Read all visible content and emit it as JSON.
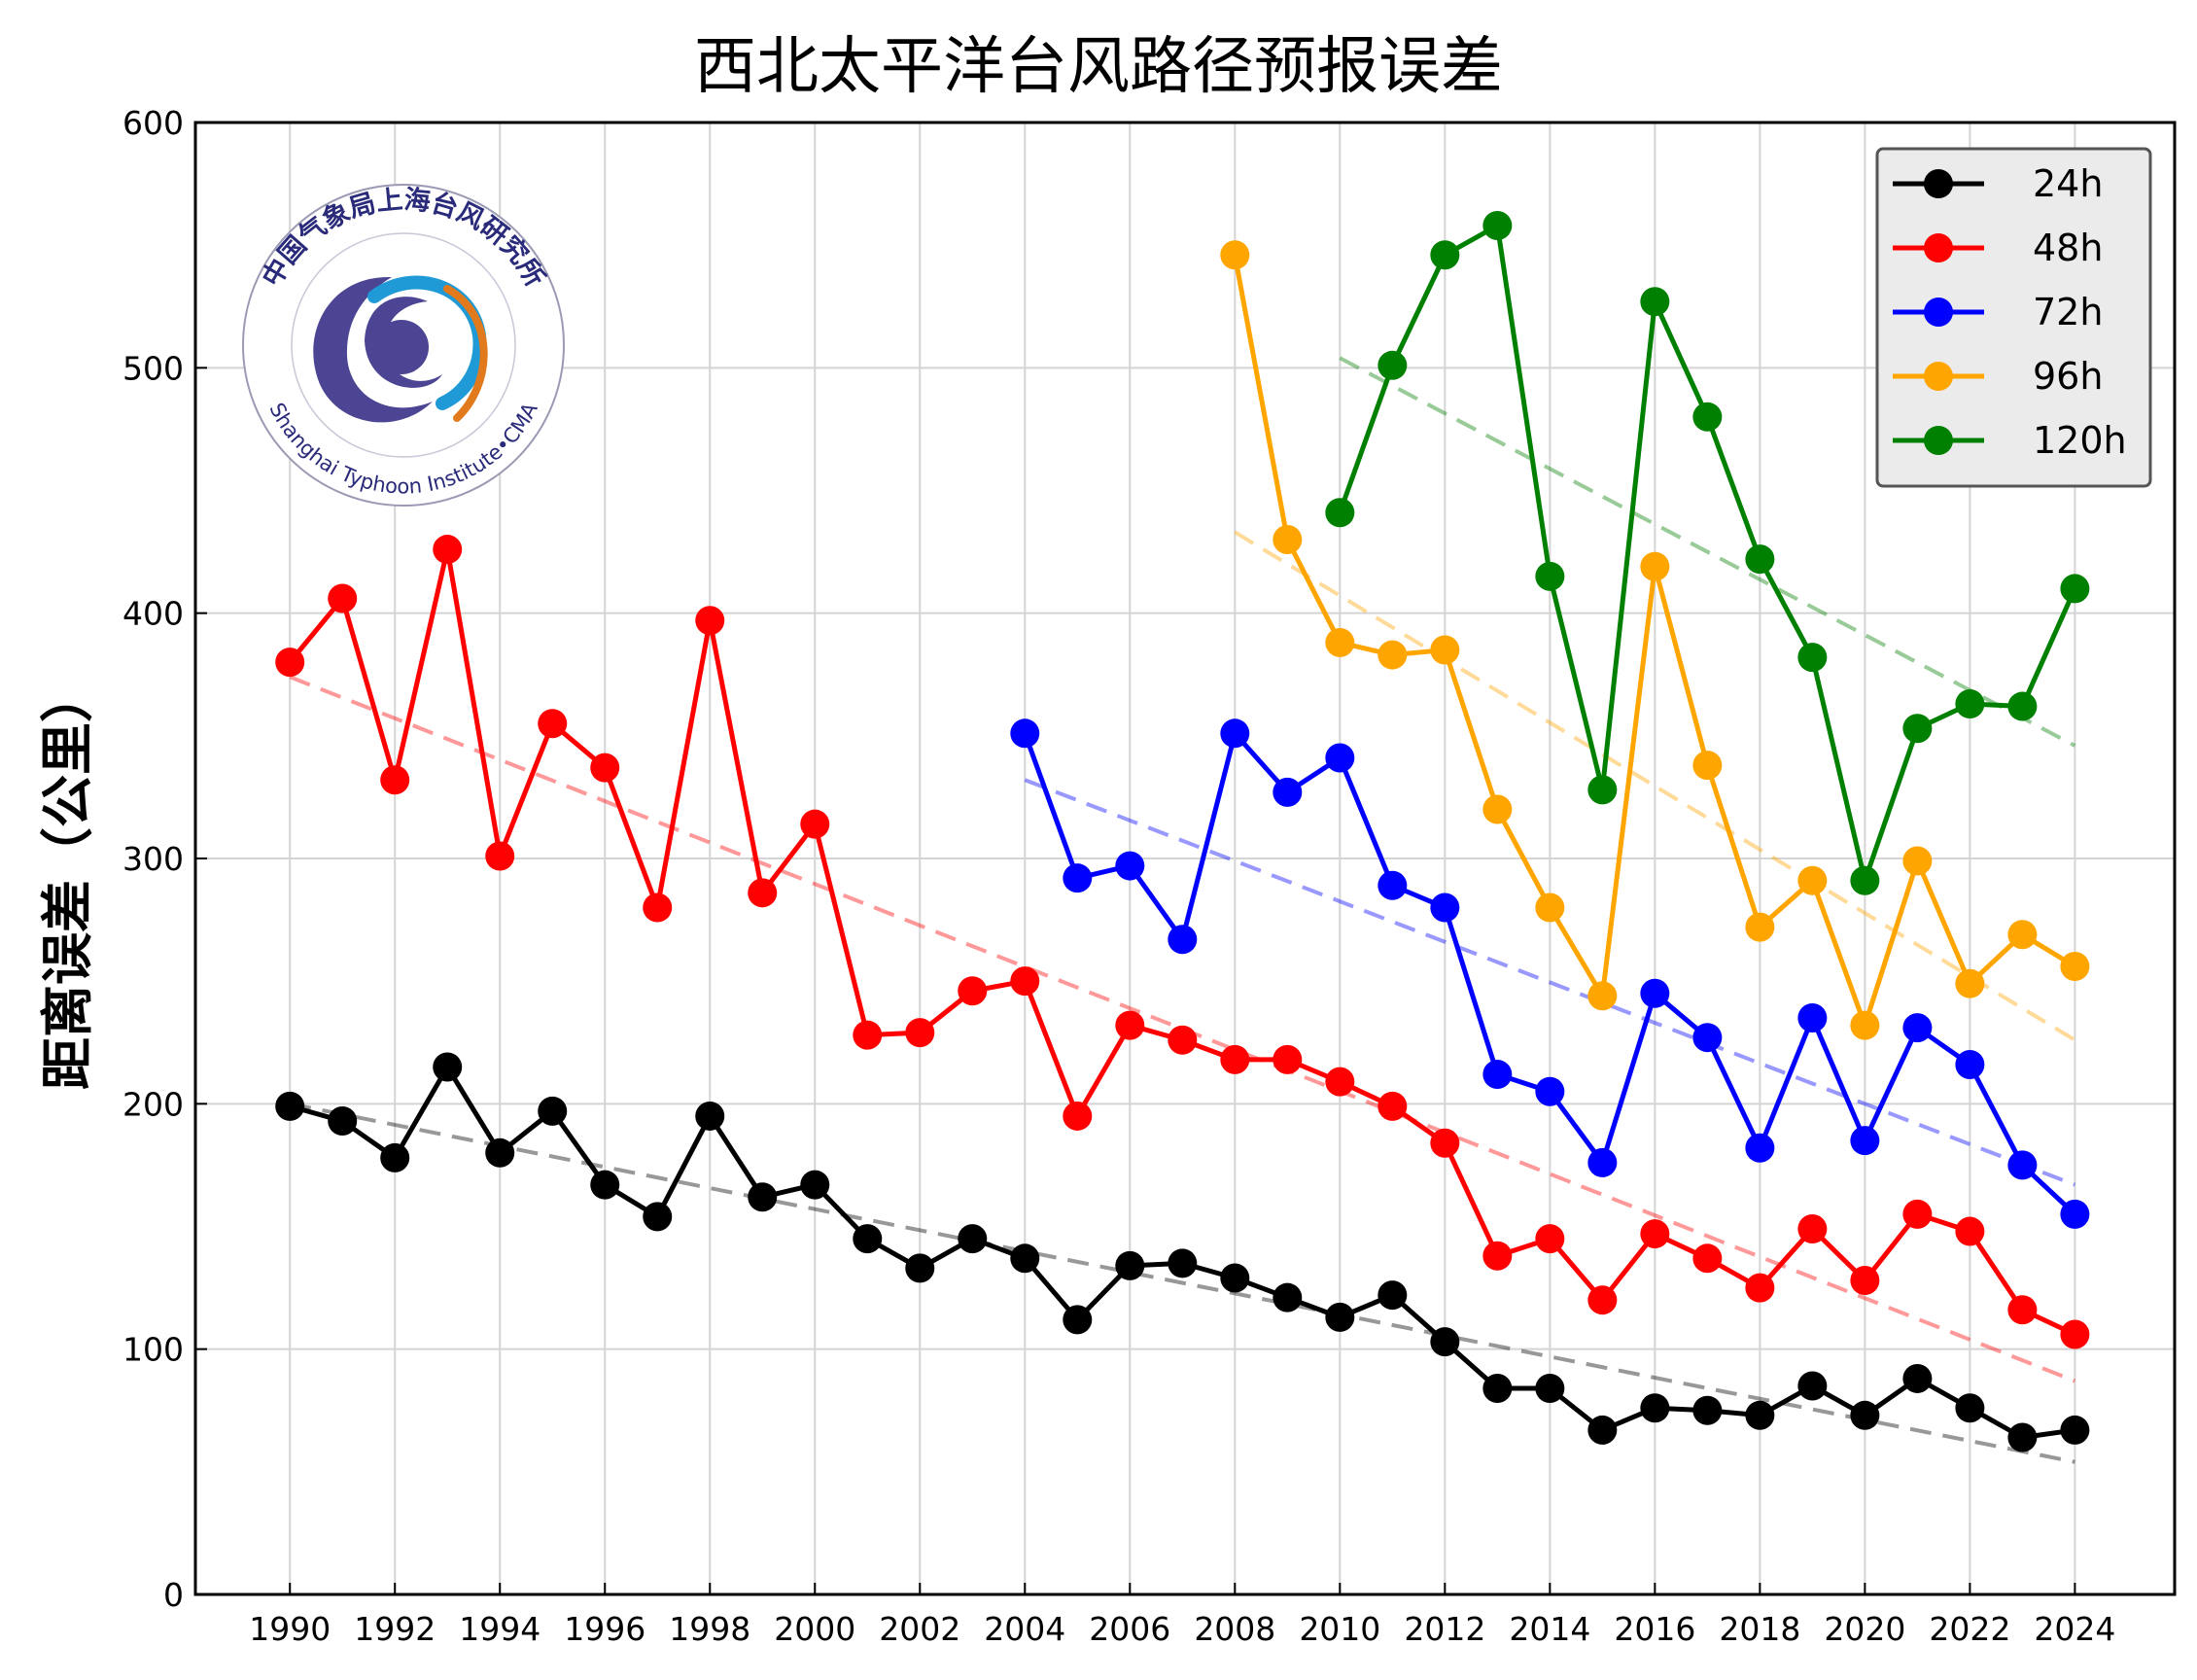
{
  "chart_data": {
    "type": "line",
    "title": "西北太平洋台风路径预报误差",
    "xlabel": "",
    "ylabel": "距离误差（公里）",
    "xlim": [
      1988.2,
      2025.9
    ],
    "ylim": [
      0,
      600
    ],
    "xticks": [
      1990,
      1992,
      1994,
      1996,
      1998,
      2000,
      2002,
      2004,
      2006,
      2008,
      2010,
      2012,
      2014,
      2016,
      2018,
      2020,
      2022,
      2024
    ],
    "yticks": [
      0,
      100,
      200,
      300,
      400,
      500,
      600
    ],
    "grid": true,
    "legend_position": "top-right",
    "trendlines": "dashed linear fit per series",
    "series": [
      {
        "name": "24h",
        "color": "#000000",
        "x": [
          1990,
          1991,
          1992,
          1993,
          1994,
          1995,
          1996,
          1997,
          1998,
          1999,
          2000,
          2001,
          2002,
          2003,
          2004,
          2005,
          2006,
          2007,
          2008,
          2009,
          2010,
          2011,
          2012,
          2013,
          2014,
          2015,
          2016,
          2017,
          2018,
          2019,
          2020,
          2021,
          2022,
          2023,
          2024
        ],
        "values": [
          199,
          193,
          178,
          215,
          180,
          197,
          167,
          154,
          195,
          162,
          167,
          145,
          133,
          145,
          137,
          112,
          134,
          135,
          129,
          121,
          113,
          122,
          103,
          84,
          84,
          67,
          76,
          75,
          73,
          85,
          73,
          88,
          76,
          64,
          67
        ],
        "trend": [
          200,
          54
        ]
      },
      {
        "name": "48h",
        "color": "#ff0000",
        "x": [
          1990,
          1991,
          1992,
          1993,
          1994,
          1995,
          1996,
          1997,
          1998,
          1999,
          2000,
          2001,
          2002,
          2003,
          2004,
          2005,
          2006,
          2007,
          2008,
          2009,
          2010,
          2011,
          2012,
          2013,
          2014,
          2015,
          2016,
          2017,
          2018,
          2019,
          2020,
          2021,
          2022,
          2023,
          2024
        ],
        "values": [
          380,
          406,
          332,
          426,
          301,
          355,
          337,
          280,
          397,
          286,
          314,
          228,
          229,
          246,
          250,
          195,
          232,
          226,
          218,
          218,
          209,
          199,
          184,
          138,
          145,
          120,
          147,
          137,
          125,
          149,
          128,
          155,
          148,
          116,
          106
        ],
        "trend": [
          374,
          87
        ]
      },
      {
        "name": "72h",
        "color": "#0000ff",
        "x": [
          2004,
          2005,
          2006,
          2007,
          2008,
          2009,
          2010,
          2011,
          2012,
          2013,
          2014,
          2015,
          2016,
          2017,
          2018,
          2019,
          2020,
          2021,
          2022,
          2023,
          2024
        ],
        "values": [
          351,
          292,
          297,
          267,
          351,
          327,
          341,
          289,
          280,
          212,
          205,
          176,
          245,
          227,
          182,
          235,
          185,
          231,
          216,
          175,
          155
        ],
        "trend": [
          332,
          167
        ]
      },
      {
        "name": "96h",
        "color": "#ffa500",
        "x": [
          2008,
          2009,
          2010,
          2011,
          2012,
          2013,
          2014,
          2015,
          2016,
          2017,
          2018,
          2019,
          2020,
          2021,
          2022,
          2023,
          2024
        ],
        "values": [
          546,
          430,
          388,
          383,
          385,
          320,
          280,
          244,
          419,
          338,
          272,
          291,
          232,
          299,
          249,
          269,
          256
        ],
        "trend": [
          433,
          226
        ]
      },
      {
        "name": "120h",
        "color": "#008000",
        "x": [
          2010,
          2011,
          2012,
          2013,
          2014,
          2015,
          2016,
          2017,
          2018,
          2019,
          2020,
          2021,
          2022,
          2023,
          2024
        ],
        "values": [
          441,
          501,
          546,
          558,
          415,
          328,
          527,
          480,
          422,
          382,
          291,
          353,
          363,
          362,
          410
        ],
        "trend": [
          504,
          346
        ]
      }
    ]
  },
  "logo": {
    "ring_top": "中国气象局上海台风研究所",
    "ring_bottom": "Shanghai Typhoon Institute•CMA"
  }
}
